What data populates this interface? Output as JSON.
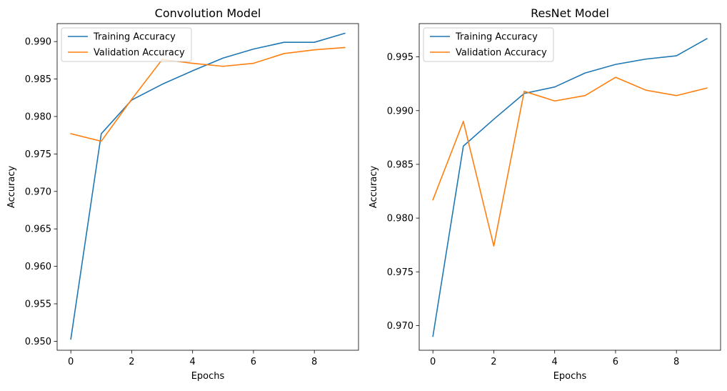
{
  "chart_data": [
    {
      "type": "line",
      "title": "Convolution Model",
      "xlabel": "Epochs",
      "ylabel": "Accuracy",
      "x": [
        0,
        1,
        2,
        3,
        4,
        5,
        6,
        7,
        8,
        9
      ],
      "xlim": [
        -0.45,
        9.45
      ],
      "ylim": [
        0.9488,
        0.9924
      ],
      "xticks": [
        0,
        2,
        4,
        6,
        8
      ],
      "xtick_labels": [
        "0",
        "2",
        "4",
        "6",
        "8"
      ],
      "yticks": [
        0.95,
        0.955,
        0.96,
        0.965,
        0.97,
        0.975,
        0.98,
        0.985,
        0.99
      ],
      "ytick_labels": [
        "0.950",
        "0.955",
        "0.960",
        "0.965",
        "0.970",
        "0.975",
        "0.980",
        "0.985",
        "0.990"
      ],
      "grid": false,
      "legend_position": "top-left",
      "series": [
        {
          "name": "Training Accuracy",
          "color": "#1f77b4",
          "values": [
            0.9503,
            0.9777,
            0.9822,
            0.9843,
            0.9861,
            0.9878,
            0.989,
            0.9899,
            0.9899,
            0.9911
          ]
        },
        {
          "name": "Validation Accuracy",
          "color": "#ff7f0e",
          "values": [
            0.9777,
            0.9767,
            0.9823,
            0.9876,
            0.9871,
            0.9867,
            0.9871,
            0.9884,
            0.9889,
            0.9892
          ]
        }
      ]
    },
    {
      "type": "line",
      "title": "ResNet Model",
      "xlabel": "Epochs",
      "ylabel": "Accuracy",
      "x": [
        0,
        1,
        2,
        3,
        4,
        5,
        6,
        7,
        8,
        9
      ],
      "xlim": [
        -0.45,
        9.45
      ],
      "ylim": [
        0.9677,
        0.9981
      ],
      "xticks": [
        0,
        2,
        4,
        6,
        8
      ],
      "xtick_labels": [
        "0",
        "2",
        "4",
        "6",
        "8"
      ],
      "yticks": [
        0.97,
        0.975,
        0.98,
        0.985,
        0.99,
        0.995
      ],
      "ytick_labels": [
        "0.970",
        "0.975",
        "0.980",
        "0.985",
        "0.990",
        "0.995"
      ],
      "grid": false,
      "legend_position": "top-left",
      "series": [
        {
          "name": "Training Accuracy",
          "color": "#1f77b4",
          "values": [
            0.969,
            0.9867,
            0.9892,
            0.9916,
            0.9922,
            0.9935,
            0.9943,
            0.9948,
            0.9951,
            0.9967
          ]
        },
        {
          "name": "Validation Accuracy",
          "color": "#ff7f0e",
          "values": [
            0.9817,
            0.989,
            0.9774,
            0.9918,
            0.9909,
            0.9914,
            0.9931,
            0.9919,
            0.9914,
            0.9921
          ]
        }
      ]
    }
  ]
}
